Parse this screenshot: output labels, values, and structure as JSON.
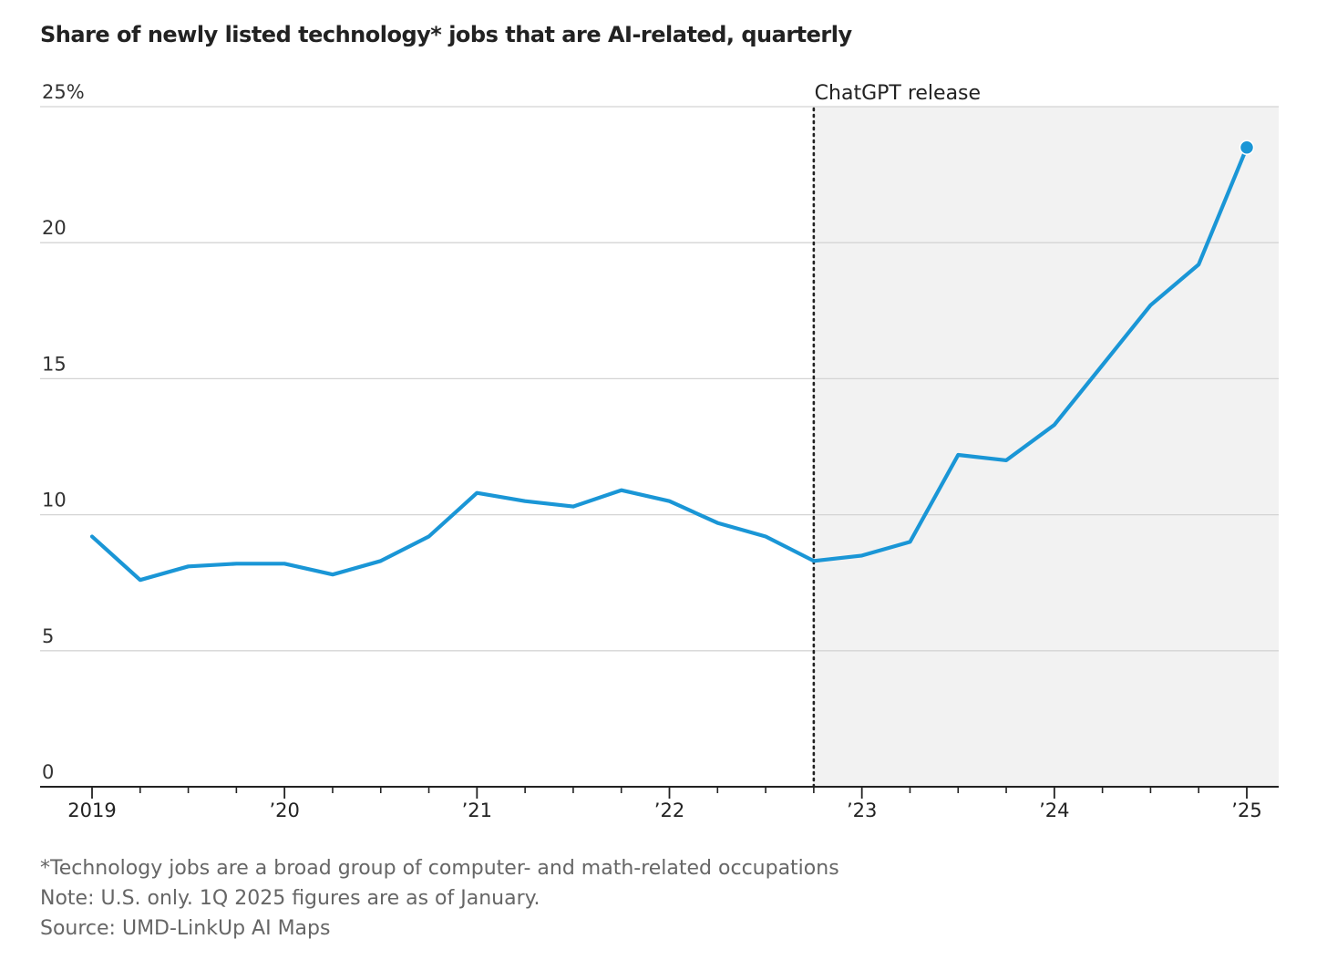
{
  "chart_data": {
    "type": "line",
    "title": "Share of newly listed technology* jobs that are AI-related, quarterly",
    "xlabel": "",
    "ylabel": "",
    "ylim": [
      0,
      25
    ],
    "yticks": [
      0,
      5,
      10,
      15,
      20,
      25
    ],
    "ytick_labels": [
      "0",
      "5",
      "10",
      "15",
      "20",
      "25%"
    ],
    "xticks": [
      {
        "value": 2019,
        "label": "2019"
      },
      {
        "value": 2020,
        "label": "’20"
      },
      {
        "value": 2021,
        "label": "’21"
      },
      {
        "value": 2022,
        "label": "’22"
      },
      {
        "value": 2023,
        "label": "’23"
      },
      {
        "value": 2024,
        "label": "’24"
      },
      {
        "value": 2025,
        "label": "’25"
      }
    ],
    "grid": true,
    "annotation": {
      "label": "ChatGPT release",
      "x": 2022.75
    },
    "shaded_region": {
      "from": 2022.75,
      "to": 2025.16
    },
    "series": [
      {
        "x": [
          2019.0,
          2019.25,
          2019.5,
          2019.75,
          2020.0,
          2020.25,
          2020.5,
          2020.75,
          2021.0,
          2021.25,
          2021.5,
          2021.75,
          2022.0,
          2022.25,
          2022.5,
          2022.75,
          2023.0,
          2023.25,
          2023.5,
          2023.75,
          2024.0,
          2024.25,
          2024.5,
          2024.75,
          2025.0
        ],
        "values": [
          9.2,
          7.6,
          8.1,
          8.2,
          8.2,
          7.8,
          8.3,
          9.2,
          10.8,
          10.5,
          10.3,
          10.9,
          10.5,
          9.7,
          9.2,
          8.3,
          8.5,
          9.0,
          12.2,
          12.0,
          13.3,
          15.5,
          17.7,
          19.2,
          23.5
        ]
      }
    ],
    "colors": {
      "line": "#1a96d6",
      "shade": "#f2f2f2",
      "grid": "#d4d4d4",
      "axis": "#222222",
      "annotation_line": "#222222"
    }
  },
  "footnotes": {
    "definition": "*Technology jobs are a broad group of computer- and math-related occupations",
    "note": "Note: U.S. only. 1Q 2025 figures are as of January.",
    "source": "Source: UMD-LinkUp AI Maps"
  }
}
